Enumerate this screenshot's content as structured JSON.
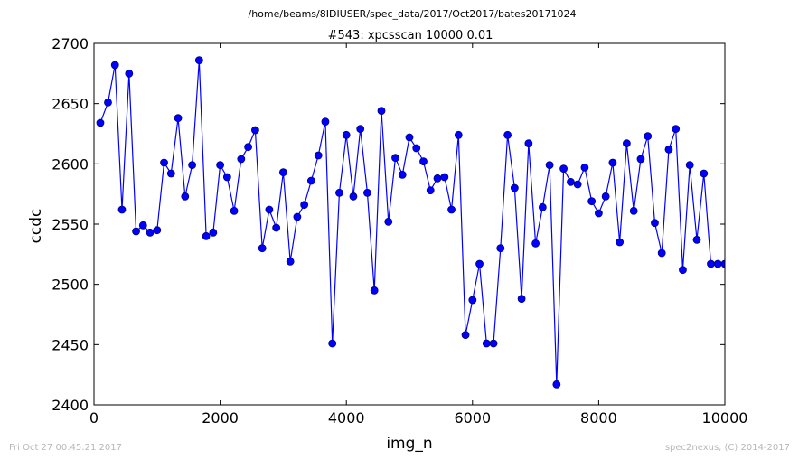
{
  "suptitle": "/home/beams/8IDIUSER/spec_data/2017/Oct2017/bates20171024",
  "footer": {
    "left": "Fri Oct 27 00:45:21 2017",
    "right": "spec2nexus, (C) 2014-2017"
  },
  "colors": {
    "series": "#0000ff",
    "marker_edge": "#000080",
    "footer": "#b8b8b8"
  },
  "chart_data": {
    "type": "line",
    "title": "#543: xpcsscan 10000 0.01",
    "xlabel": "img_n",
    "ylabel": "ccdc",
    "xlim": [
      0,
      10000
    ],
    "ylim": [
      2400,
      2700
    ],
    "xticks": [
      0,
      2000,
      4000,
      6000,
      8000,
      10000
    ],
    "yticks": [
      2400,
      2450,
      2500,
      2550,
      2600,
      2650,
      2700
    ],
    "grid": false,
    "markers": true,
    "series": [
      {
        "x": [
          100,
          222,
          333,
          444,
          556,
          667,
          778,
          889,
          1000,
          1111,
          1222,
          1333,
          1444,
          1556,
          1667,
          1778,
          1889,
          2000,
          2111,
          2222,
          2333,
          2444,
          2556,
          2667,
          2778,
          2889,
          3000,
          3111,
          3222,
          3333,
          3444,
          3556,
          3667,
          3778,
          3889,
          4000,
          4111,
          4222,
          4333,
          4444,
          4556,
          4667,
          4778,
          4889,
          5000,
          5111,
          5222,
          5333,
          5444,
          5556,
          5667,
          5778,
          5889,
          6000,
          6111,
          6222,
          6333,
          6444,
          6556,
          6667,
          6778,
          6889,
          7000,
          7111,
          7222,
          7333,
          7444,
          7556,
          7667,
          7778,
          7889,
          8000,
          8111,
          8222,
          8333,
          8444,
          8556,
          8667,
          8778,
          8889,
          9000,
          9111,
          9222,
          9333,
          9444,
          9556,
          9667,
          9778,
          9889,
          10000
        ],
        "y": [
          2634,
          2651,
          2682,
          2562,
          2675,
          2544,
          2549,
          2543,
          2545,
          2601,
          2592,
          2638,
          2573,
          2599,
          2686,
          2540,
          2543,
          2599,
          2589,
          2561,
          2604,
          2614,
          2628,
          2530,
          2562,
          2547,
          2593,
          2519,
          2556,
          2566,
          2586,
          2607,
          2635,
          2451,
          2576,
          2624,
          2573,
          2629,
          2576,
          2495,
          2644,
          2552,
          2605,
          2591,
          2622,
          2613,
          2602,
          2578,
          2588,
          2589,
          2562,
          2624,
          2458,
          2487,
          2517,
          2451,
          2451,
          2530,
          2624,
          2580,
          2488,
          2617,
          2534,
          2564,
          2599,
          2417,
          2596,
          2585,
          2583,
          2597,
          2569,
          2559,
          2573,
          2601,
          2535,
          2617,
          2561,
          2604,
          2623,
          2551,
          2526,
          2612,
          2629,
          2512,
          2599,
          2537,
          2592,
          2517,
          2517,
          2517
        ]
      }
    ]
  }
}
